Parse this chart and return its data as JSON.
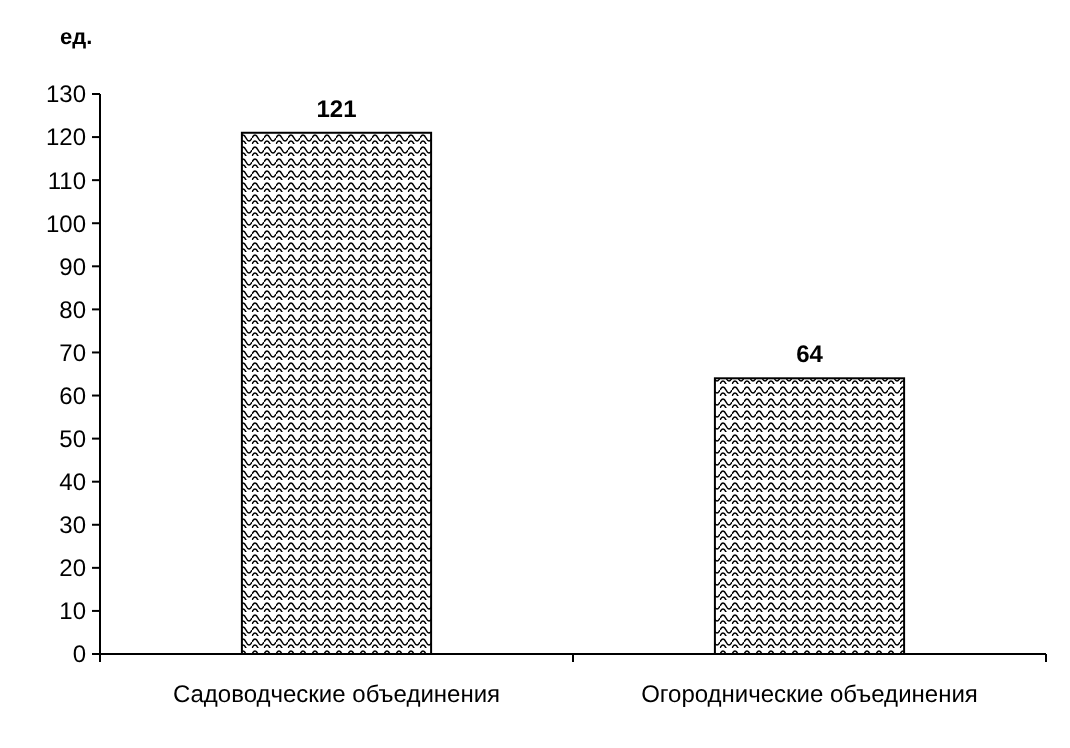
{
  "chart_data": {
    "type": "bar",
    "ylabel": "ед.",
    "categories": [
      "Садоводческие объединения",
      "Огороднические объединения"
    ],
    "values": [
      121,
      64
    ],
    "color": "#000000",
    "ylim": [
      0,
      130
    ],
    "yticks": [
      0,
      10,
      20,
      30,
      40,
      50,
      60,
      70,
      80,
      90,
      100,
      110,
      120,
      130
    ],
    "data_labels": true,
    "grid": false
  }
}
